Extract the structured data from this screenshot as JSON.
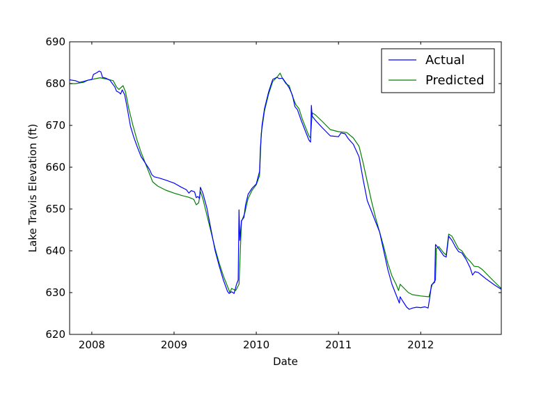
{
  "chart_data": {
    "type": "line",
    "title": "",
    "xlabel": "Date",
    "ylabel": "Lake Travis Elevation (ft)",
    "xlim": [
      2007.73,
      2012.98
    ],
    "ylim": [
      620,
      690
    ],
    "x_ticks": [
      2008,
      2009,
      2010,
      2011,
      2012
    ],
    "x_tick_labels": [
      "2008",
      "2009",
      "2010",
      "2011",
      "2012"
    ],
    "y_ticks": [
      620,
      630,
      640,
      650,
      660,
      670,
      680,
      690
    ],
    "y_tick_labels": [
      "620",
      "630",
      "640",
      "650",
      "660",
      "670",
      "680",
      "690"
    ],
    "grid": false,
    "legend_position": "top-right",
    "series": [
      {
        "name": "Actual",
        "color": "#0000ff",
        "points": [
          [
            2007.73,
            680.9
          ],
          [
            2007.8,
            680.7
          ],
          [
            2007.85,
            680.3
          ],
          [
            2007.9,
            680.5
          ],
          [
            2007.95,
            680.8
          ],
          [
            2008.0,
            681.0
          ],
          [
            2008.02,
            682.2
          ],
          [
            2008.06,
            682.6
          ],
          [
            2008.09,
            683.0
          ],
          [
            2008.11,
            682.8
          ],
          [
            2008.13,
            681.5
          ],
          [
            2008.17,
            681.3
          ],
          [
            2008.22,
            680.8
          ],
          [
            2008.25,
            680.0
          ],
          [
            2008.28,
            679.2
          ],
          [
            2008.3,
            678.2
          ],
          [
            2008.33,
            677.9
          ],
          [
            2008.35,
            677.5
          ],
          [
            2008.37,
            678.5
          ],
          [
            2008.4,
            677.3
          ],
          [
            2008.43,
            674.2
          ],
          [
            2008.47,
            669.8
          ],
          [
            2008.51,
            667.2
          ],
          [
            2008.55,
            665.0
          ],
          [
            2008.6,
            662.5
          ],
          [
            2008.65,
            661.0
          ],
          [
            2008.7,
            659.5
          ],
          [
            2008.73,
            658.2
          ],
          [
            2008.76,
            657.7
          ],
          [
            2008.82,
            657.4
          ],
          [
            2008.9,
            656.9
          ],
          [
            2009.0,
            656.2
          ],
          [
            2009.08,
            655.3
          ],
          [
            2009.15,
            654.6
          ],
          [
            2009.18,
            653.8
          ],
          [
            2009.21,
            654.4
          ],
          [
            2009.25,
            654.1
          ],
          [
            2009.27,
            652.7
          ],
          [
            2009.29,
            653.0
          ],
          [
            2009.31,
            652.5
          ],
          [
            2009.32,
            655.2
          ],
          [
            2009.35,
            653.8
          ],
          [
            2009.4,
            650.2
          ],
          [
            2009.45,
            645.0
          ],
          [
            2009.5,
            640.0
          ],
          [
            2009.55,
            636.3
          ],
          [
            2009.6,
            633.0
          ],
          [
            2009.65,
            630.3
          ],
          [
            2009.67,
            629.8
          ],
          [
            2009.7,
            630.2
          ],
          [
            2009.73,
            629.8
          ],
          [
            2009.76,
            632.0
          ],
          [
            2009.78,
            633.0
          ],
          [
            2009.79,
            649.8
          ],
          [
            2009.8,
            642.5
          ],
          [
            2009.82,
            647.2
          ],
          [
            2009.85,
            648.0
          ],
          [
            2009.87,
            651.0
          ],
          [
            2009.9,
            653.5
          ],
          [
            2009.95,
            655.0
          ],
          [
            2010.0,
            656.0
          ],
          [
            2010.04,
            659.0
          ],
          [
            2010.05,
            664.5
          ],
          [
            2010.07,
            670.0
          ],
          [
            2010.1,
            674.0
          ],
          [
            2010.15,
            678.0
          ],
          [
            2010.2,
            681.0
          ],
          [
            2010.25,
            681.5
          ],
          [
            2010.28,
            681.2
          ],
          [
            2010.32,
            681.3
          ],
          [
            2010.36,
            680.2
          ],
          [
            2010.4,
            679.0
          ],
          [
            2010.44,
            677.2
          ],
          [
            2010.47,
            674.5
          ],
          [
            2010.5,
            673.8
          ],
          [
            2010.55,
            671.0
          ],
          [
            2010.6,
            668.5
          ],
          [
            2010.64,
            666.5
          ],
          [
            2010.66,
            666.0
          ],
          [
            2010.67,
            674.8
          ],
          [
            2010.68,
            672.2
          ],
          [
            2010.72,
            671.2
          ],
          [
            2010.8,
            669.5
          ],
          [
            2010.9,
            667.5
          ],
          [
            2011.0,
            667.3
          ],
          [
            2011.03,
            668.2
          ],
          [
            2011.08,
            668.0
          ],
          [
            2011.12,
            666.8
          ],
          [
            2011.18,
            665.5
          ],
          [
            2011.25,
            662.5
          ],
          [
            2011.3,
            657.0
          ],
          [
            2011.35,
            652.0
          ],
          [
            2011.4,
            649.5
          ],
          [
            2011.45,
            647.0
          ],
          [
            2011.5,
            644.5
          ],
          [
            2011.55,
            640.0
          ],
          [
            2011.6,
            635.5
          ],
          [
            2011.65,
            632.0
          ],
          [
            2011.7,
            629.5
          ],
          [
            2011.74,
            627.5
          ],
          [
            2011.75,
            629.0
          ],
          [
            2011.78,
            628.0
          ],
          [
            2011.83,
            626.5
          ],
          [
            2011.86,
            626.0
          ],
          [
            2011.9,
            626.3
          ],
          [
            2011.95,
            626.5
          ],
          [
            2012.0,
            626.4
          ],
          [
            2012.05,
            626.6
          ],
          [
            2012.09,
            626.3
          ],
          [
            2012.11,
            628.8
          ],
          [
            2012.13,
            631.8
          ],
          [
            2012.17,
            632.5
          ],
          [
            2012.18,
            641.5
          ],
          [
            2012.22,
            640.5
          ],
          [
            2012.28,
            638.8
          ],
          [
            2012.31,
            638.5
          ],
          [
            2012.34,
            643.5
          ],
          [
            2012.38,
            642.5
          ],
          [
            2012.42,
            641.0
          ],
          [
            2012.46,
            639.8
          ],
          [
            2012.5,
            639.5
          ],
          [
            2012.55,
            638.0
          ],
          [
            2012.6,
            636.0
          ],
          [
            2012.63,
            634.2
          ],
          [
            2012.66,
            635.0
          ],
          [
            2012.7,
            634.8
          ],
          [
            2012.75,
            634.0
          ],
          [
            2012.8,
            633.2
          ],
          [
            2012.85,
            632.5
          ],
          [
            2012.9,
            631.8
          ],
          [
            2012.98,
            630.8
          ]
        ]
      },
      {
        "name": "Predicted",
        "color": "#008000",
        "points": [
          [
            2007.73,
            680.0
          ],
          [
            2007.8,
            680.0
          ],
          [
            2007.9,
            680.3
          ],
          [
            2007.95,
            680.8
          ],
          [
            2008.0,
            681.0
          ],
          [
            2008.1,
            681.4
          ],
          [
            2008.2,
            681.0
          ],
          [
            2008.26,
            680.7
          ],
          [
            2008.3,
            679.2
          ],
          [
            2008.33,
            678.6
          ],
          [
            2008.35,
            679.0
          ],
          [
            2008.38,
            679.5
          ],
          [
            2008.41,
            678.0
          ],
          [
            2008.45,
            674.0
          ],
          [
            2008.5,
            670.0
          ],
          [
            2008.55,
            666.5
          ],
          [
            2008.6,
            663.5
          ],
          [
            2008.65,
            661.0
          ],
          [
            2008.7,
            658.5
          ],
          [
            2008.74,
            656.5
          ],
          [
            2008.8,
            655.5
          ],
          [
            2008.9,
            654.5
          ],
          [
            2009.0,
            653.8
          ],
          [
            2009.1,
            653.2
          ],
          [
            2009.18,
            652.8
          ],
          [
            2009.24,
            652.3
          ],
          [
            2009.27,
            651.0
          ],
          [
            2009.3,
            651.5
          ],
          [
            2009.32,
            654.2
          ],
          [
            2009.35,
            652.5
          ],
          [
            2009.4,
            648.5
          ],
          [
            2009.45,
            644.5
          ],
          [
            2009.5,
            640.5
          ],
          [
            2009.55,
            637.0
          ],
          [
            2009.6,
            634.0
          ],
          [
            2009.65,
            631.5
          ],
          [
            2009.68,
            630.0
          ],
          [
            2009.7,
            631.0
          ],
          [
            2009.75,
            630.5
          ],
          [
            2009.79,
            632.0
          ],
          [
            2009.82,
            647.0
          ],
          [
            2009.86,
            649.0
          ],
          [
            2009.9,
            652.5
          ],
          [
            2009.95,
            654.5
          ],
          [
            2010.0,
            655.8
          ],
          [
            2010.04,
            658.0
          ],
          [
            2010.06,
            668.0
          ],
          [
            2010.1,
            673.5
          ],
          [
            2010.15,
            677.5
          ],
          [
            2010.2,
            680.5
          ],
          [
            2010.25,
            681.5
          ],
          [
            2010.29,
            682.5
          ],
          [
            2010.32,
            681.2
          ],
          [
            2010.36,
            680.0
          ],
          [
            2010.4,
            679.5
          ],
          [
            2010.44,
            677.0
          ],
          [
            2010.48,
            675.0
          ],
          [
            2010.52,
            674.0
          ],
          [
            2010.56,
            671.5
          ],
          [
            2010.6,
            669.5
          ],
          [
            2010.64,
            667.5
          ],
          [
            2010.66,
            667.0
          ],
          [
            2010.68,
            673.0
          ],
          [
            2010.72,
            672.5
          ],
          [
            2010.8,
            671.0
          ],
          [
            2010.9,
            669.0
          ],
          [
            2011.0,
            668.5
          ],
          [
            2011.1,
            668.3
          ],
          [
            2011.18,
            667.0
          ],
          [
            2011.25,
            665.0
          ],
          [
            2011.3,
            661.0
          ],
          [
            2011.35,
            656.5
          ],
          [
            2011.4,
            652.0
          ],
          [
            2011.45,
            648.0
          ],
          [
            2011.5,
            644.5
          ],
          [
            2011.55,
            641.0
          ],
          [
            2011.6,
            637.0
          ],
          [
            2011.65,
            634.0
          ],
          [
            2011.7,
            632.0
          ],
          [
            2011.73,
            630.5
          ],
          [
            2011.75,
            632.0
          ],
          [
            2011.8,
            631.0
          ],
          [
            2011.85,
            630.0
          ],
          [
            2011.9,
            629.5
          ],
          [
            2012.0,
            629.2
          ],
          [
            2012.1,
            629.0
          ],
          [
            2012.14,
            632.0
          ],
          [
            2012.18,
            633.0
          ],
          [
            2012.19,
            640.5
          ],
          [
            2012.22,
            641.0
          ],
          [
            2012.28,
            639.5
          ],
          [
            2012.31,
            639.0
          ],
          [
            2012.34,
            644.0
          ],
          [
            2012.38,
            643.5
          ],
          [
            2012.42,
            642.0
          ],
          [
            2012.46,
            640.5
          ],
          [
            2012.5,
            640.0
          ],
          [
            2012.55,
            638.5
          ],
          [
            2012.6,
            637.5
          ],
          [
            2012.65,
            636.3
          ],
          [
            2012.7,
            636.2
          ],
          [
            2012.75,
            635.5
          ],
          [
            2012.8,
            634.5
          ],
          [
            2012.85,
            633.5
          ],
          [
            2012.9,
            632.5
          ],
          [
            2012.98,
            631.0
          ]
        ]
      }
    ]
  }
}
